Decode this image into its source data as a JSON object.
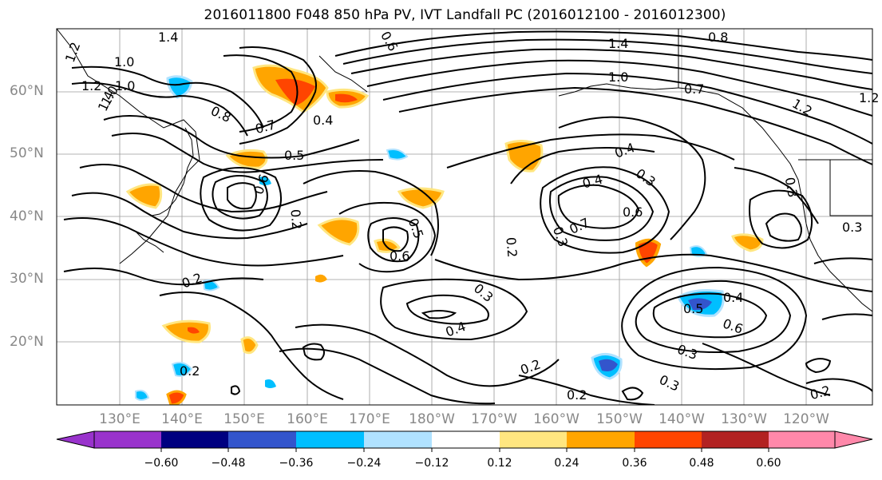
{
  "title": "2016011800 F048 850 hPa PV, IVT Landfall PC (2016012100 - 2016012300)",
  "lat_labels": [
    "60°N",
    "50°N",
    "40°N",
    "30°N",
    "20°N"
  ],
  "lon_labels": [
    "130°E",
    "140°E",
    "150°E",
    "160°E",
    "170°E",
    "180°W",
    "170°W",
    "160°W",
    "150°W",
    "140°W",
    "130°W",
    "120°W"
  ],
  "colorbar": {
    "ticks": [
      "−0.60",
      "−0.48",
      "−0.36",
      "−0.24",
      "−0.12",
      "0.12",
      "0.24",
      "0.36",
      "0.48",
      "0.60"
    ],
    "colors": [
      "#9933cc",
      "#000080",
      "#3355cc",
      "#00bfff",
      "#b0e2ff",
      "#ffffff",
      "#ffe680",
      "#ffa500",
      "#ff4500",
      "#b22222",
      "#ff88aa"
    ]
  },
  "contour_labels": [
    "1.2",
    "1.4",
    "1.0",
    "1.0",
    "1.2",
    "1.0",
    "1.4",
    "0.8",
    "0.7",
    "0.4",
    "0.5",
    "0.6",
    "0.6",
    "1.4",
    "0.8",
    "1.0",
    "1.2",
    "0.7",
    "1.2",
    "0.4",
    "0.4",
    "0.3",
    "0.6",
    "0.7",
    "0.2",
    "0.3",
    "0.3",
    "0.3",
    "0.5",
    "0.6",
    "0.2",
    "0.2",
    "0.2",
    "0.4",
    "0.4",
    "0.5",
    "0.6",
    "0.3",
    "0.3",
    "0.2",
    "0.3",
    "0.2",
    "0.2"
  ]
}
